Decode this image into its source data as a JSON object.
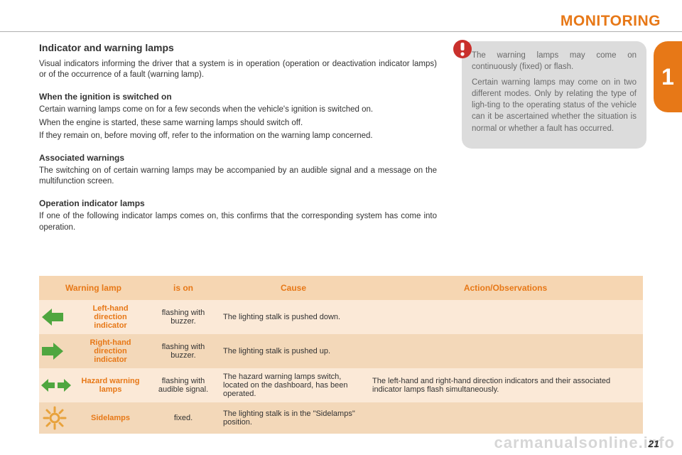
{
  "colors": {
    "accent": "#e77817",
    "tab_bg": "#e77817",
    "callout_bg": "#dcdcdc",
    "callout_text": "#6a6a6a",
    "table_header_bg": "#f6d6b2",
    "row_light": "#fbe9d7",
    "row_dark": "#f3d8b9",
    "icon_green": "#4fa63f",
    "icon_orange": "#e8a23b",
    "alert_red": "#c9302c"
  },
  "header": {
    "title": "MONITORING"
  },
  "side_tab": {
    "number": "1"
  },
  "main": {
    "h2": "Indicator and warning lamps",
    "intro": "Visual indicators informing the driver that a system is in operation (operation or deactivation indicator lamps) or of the occurrence of a fault (warning lamp).",
    "sections": [
      {
        "h3": "When the ignition is switched on",
        "paras": [
          "Certain warning lamps come on for a few seconds when the vehicle's ignition is switched on.",
          "When the engine is started, these same warning lamps should switch off.",
          "If they remain on, before moving off, refer to the information on the warning lamp concerned."
        ]
      },
      {
        "h3": "Associated warnings",
        "paras": [
          "The switching on of certain warning lamps may be accompanied by an audible signal and a message on the multifunction screen."
        ]
      },
      {
        "h3": "Operation indicator lamps",
        "paras": [
          "If one of the following indicator lamps comes on, this confirms that the corresponding system has come into operation."
        ]
      }
    ]
  },
  "callout": {
    "p1": "The warning lamps may come on continuously (fixed) or flash.",
    "p2": "Certain warning lamps may come on in two different modes. Only by relating the type of ligh-ting to the operating status of the vehicle can it be ascertained whether the situation is normal or whether a fault has occurred."
  },
  "table": {
    "headers": [
      "Warning lamp",
      "is on",
      "Cause",
      "Action/Observations"
    ],
    "rows": [
      {
        "icon": "arrow-left",
        "name": "Left-hand direction indicator",
        "is_on": "flashing with buzzer.",
        "cause": "The lighting stalk is pushed down.",
        "action": ""
      },
      {
        "icon": "arrow-right",
        "name": "Right-hand direction indicator",
        "is_on": "flashing with buzzer.",
        "cause": "The lighting stalk is pushed up.",
        "action": ""
      },
      {
        "icon": "hazard",
        "name": "Hazard warning lamps",
        "is_on": "flashing with audible signal.",
        "cause": "The hazard warning lamps switch, located on the dashboard, has been operated.",
        "action": "The left-hand and right-hand direction indicators and their associated indicator lamps flash simultaneously."
      },
      {
        "icon": "sidelamps",
        "name": "Sidelamps",
        "is_on": "fixed.",
        "cause": "The lighting stalk is in the \"Sidelamps\" position.",
        "action": ""
      }
    ]
  },
  "footer": {
    "page": "21",
    "watermark": "carmanualsonline.info"
  }
}
